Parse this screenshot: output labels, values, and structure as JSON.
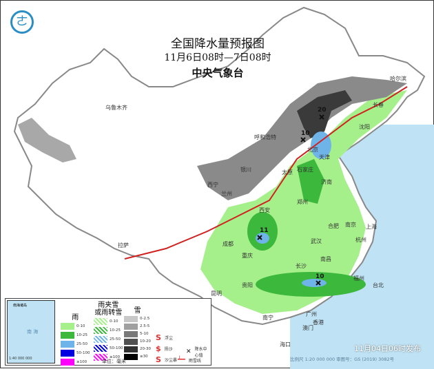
{
  "title": "全国降水量预报图",
  "period": "11月6日08时—7日08时",
  "issuer": "中央气象台",
  "published": "11月04日06时发布",
  "scale_note": "比例尺 1:20 000 000    审图号：GS (2019) 3082号",
  "colors": {
    "sea": "#bfe3f5",
    "rain_light": "#a6f08c",
    "rain_mod": "#3cb83c",
    "rain_heavy": "#6fb4e8",
    "snow_dark": "#555555",
    "snow_light": "#b9b9b9",
    "rain_snow_line": "#d02020"
  },
  "cities": [
    "乌鲁木齐",
    "哈尔滨",
    "长春",
    "沈阳",
    "呼和浩特",
    "北京",
    "天津",
    "石家庄",
    "太原",
    "银川",
    "西宁",
    "兰州",
    "济南",
    "郑州",
    "西安",
    "合肥",
    "南京",
    "上海",
    "杭州",
    "武汉",
    "成都",
    "重庆",
    "拉萨",
    "长沙",
    "南昌",
    "福州",
    "台北",
    "贵阳",
    "昆明",
    "南宁",
    "广州",
    "香港",
    "澳门",
    "海口"
  ],
  "precip_centers": [
    "20",
    "10",
    "11",
    "10"
  ],
  "legend": {
    "rain": {
      "header": "雨",
      "items": [
        "0-10",
        "10-25",
        "25-50",
        "50-100",
        "≥100"
      ],
      "colors": [
        "#a6f08c",
        "#3cb83c",
        "#6fb4e8",
        "#0000e0",
        "#ff00ff"
      ]
    },
    "mixed": {
      "header": "雨夹雪\n或雨转雪",
      "items": [
        "0-10",
        "10-25",
        "25-50",
        "50-100",
        "≥100"
      ]
    },
    "snow": {
      "header": "雪",
      "items": [
        "0-2.5",
        "2.5-5",
        "5-10",
        "10-20",
        "20-30",
        "≥30"
      ],
      "colors": [
        "#c8c8c8",
        "#a0a0a0",
        "#787878",
        "#505050",
        "#303030",
        "#000000"
      ]
    },
    "symbols": [
      "浮尘",
      "扬沙",
      "沙尘暴",
      "降水中心值",
      "雨雪线"
    ],
    "unit": "单位：毫米",
    "inset": {
      "label": "南海诸岛",
      "scale": "1:40 000 000",
      "sea": "南 海"
    }
  }
}
